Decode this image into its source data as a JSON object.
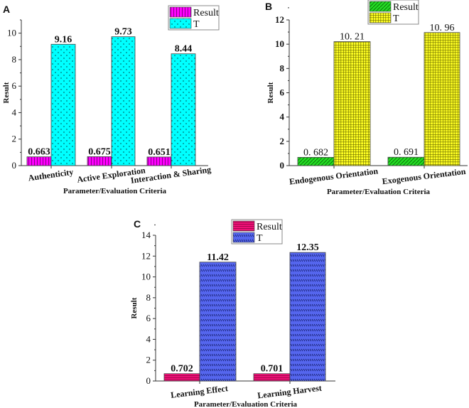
{
  "colors": {
    "result_A": "#ff00ff",
    "T_A": "#00ffff",
    "result_B": "#22dd22",
    "T_B": "#ffff22",
    "result_C": "#ee1177",
    "T_C": "#5566ee"
  },
  "chart_data": [
    {
      "type": "bar",
      "panel": "A",
      "categories": [
        "Authenticity",
        "Active Exploration",
        "Interaction & Sharing"
      ],
      "series": [
        {
          "name": "Result",
          "values": [
            0.663,
            0.675,
            0.651
          ]
        },
        {
          "name": "T",
          "values": [
            9.16,
            9.73,
            8.44
          ]
        }
      ],
      "value_labels": [
        [
          "0.663",
          "0.675",
          "0.651"
        ],
        [
          "9.16",
          "9.73",
          "8.44"
        ]
      ],
      "xlabel": "Parameter/Evaluation Criteria",
      "ylabel": "Result",
      "ylim": [
        0,
        11
      ],
      "yticks": [
        0,
        2,
        4,
        6,
        8,
        10
      ],
      "legend": "top-right",
      "grid": false
    },
    {
      "type": "bar",
      "panel": "B",
      "categories": [
        "Endogenous Orientation",
        "Exogenous Orientation"
      ],
      "series": [
        {
          "name": "Result",
          "values": [
            0.682,
            0.691
          ]
        },
        {
          "name": "T",
          "values": [
            10.21,
            10.96
          ]
        }
      ],
      "value_labels": [
        [
          "0. 682",
          "0. 691"
        ],
        [
          "10. 21",
          "10. 96"
        ]
      ],
      "xlabel": "Parameter/Evaluation Criteria",
      "ylabel": "Result",
      "ylim": [
        0,
        12
      ],
      "yticks": [
        0,
        2,
        4,
        6,
        8,
        10,
        12
      ],
      "legend": "top-center",
      "grid": false
    },
    {
      "type": "bar",
      "panel": "C",
      "categories": [
        "Learning Effect",
        "Learning Harvest"
      ],
      "series": [
        {
          "name": "Result",
          "values": [
            0.702,
            0.701
          ]
        },
        {
          "name": "T",
          "values": [
            11.42,
            12.35
          ]
        }
      ],
      "value_labels": [
        [
          "0.702",
          "0.701"
        ],
        [
          "11.42",
          "12.35"
        ]
      ],
      "xlabel": "Parameter/Evaluation Criteria",
      "ylabel": "Result",
      "ylim": [
        0,
        14
      ],
      "yticks": [
        0,
        2,
        4,
        6,
        8,
        10,
        12,
        14
      ],
      "legend": "top-center",
      "grid": false
    }
  ]
}
